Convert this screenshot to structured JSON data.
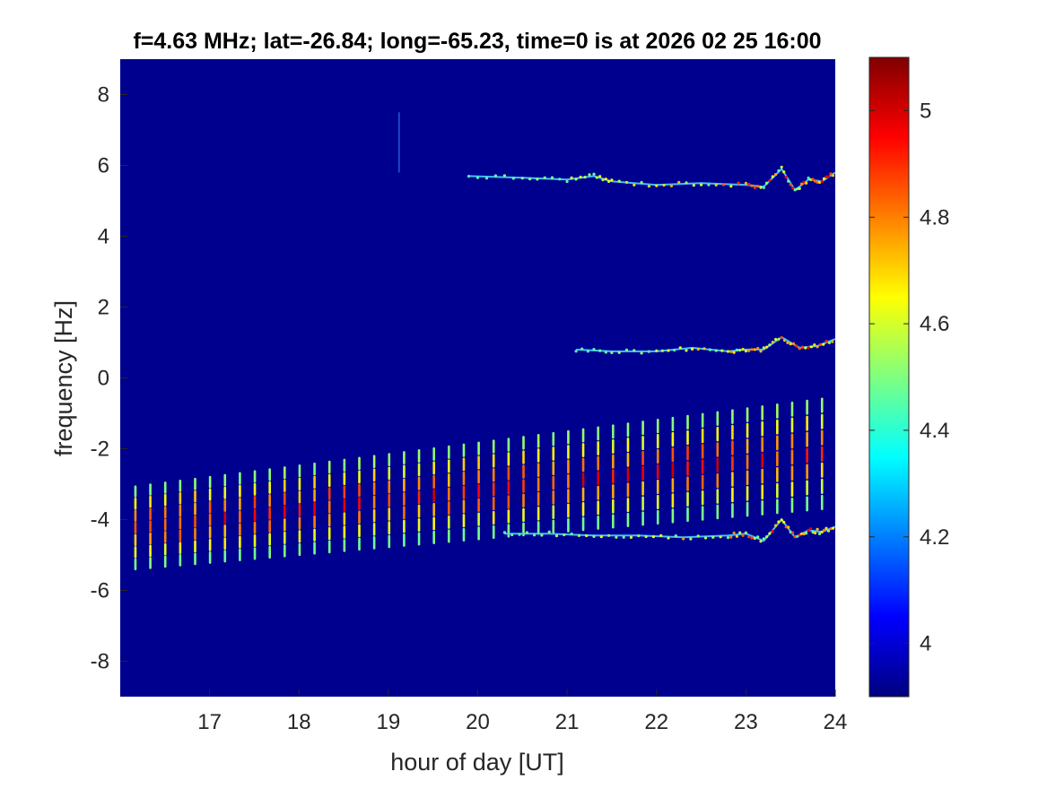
{
  "chart_data": {
    "type": "heatmap",
    "title": "f=4.63 MHz;  lat=-26.84; long=-65.23, time=0 is at 2026 02 25 16:00",
    "xlabel": "hour of day [UT]",
    "ylabel": "frequency [Hz]",
    "xlim": [
      16,
      24
    ],
    "ylim": [
      -9,
      9
    ],
    "x_ticks": [
      17,
      18,
      19,
      20,
      21,
      22,
      23,
      24
    ],
    "y_ticks": [
      -8,
      -6,
      -4,
      -2,
      0,
      2,
      4,
      6,
      8
    ],
    "colorbar": {
      "colormap": "jet",
      "range": [
        3.9,
        5.1
      ],
      "ticks": [
        4,
        4.2,
        4.4,
        4.6,
        4.8,
        5
      ]
    },
    "background_value": 3.9,
    "features": {
      "upper_trace": {
        "x": [
          19.9,
          20.5,
          21.0,
          21.3,
          21.5,
          22.0,
          22.5,
          23.0,
          23.2,
          23.4,
          23.55,
          23.7,
          23.85,
          24.0
        ],
        "y": [
          5.7,
          5.65,
          5.6,
          5.7,
          5.55,
          5.45,
          5.5,
          5.45,
          5.4,
          5.9,
          5.3,
          5.6,
          5.55,
          5.8
        ]
      },
      "middle_trace": {
        "x": [
          21.1,
          21.5,
          22.0,
          22.4,
          22.8,
          23.0,
          23.2,
          23.4,
          23.6,
          23.8,
          24.0
        ],
        "y": [
          0.8,
          0.75,
          0.75,
          0.85,
          0.75,
          0.8,
          0.8,
          1.15,
          0.85,
          0.9,
          1.1
        ]
      },
      "lower_trace": {
        "x": [
          20.3,
          20.8,
          21.3,
          21.8,
          22.3,
          22.8,
          23.0,
          23.2,
          23.4,
          23.55,
          23.7,
          23.85,
          24.0
        ],
        "y": [
          -4.4,
          -4.4,
          -4.45,
          -4.45,
          -4.5,
          -4.45,
          -4.4,
          -4.6,
          -4.0,
          -4.5,
          -4.3,
          -4.35,
          -4.2
        ]
      },
      "periodic_streaks": {
        "x_start": 16.17,
        "x_end": 23.87,
        "spacing_hours": 0.167,
        "center_start": -4.2,
        "center_end": -2.1,
        "half_length_start": 1.2,
        "half_length_end": 1.6
      }
    }
  }
}
